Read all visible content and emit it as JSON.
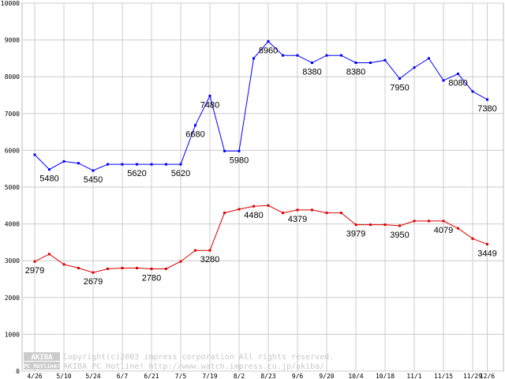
{
  "chart_data": {
    "type": "line",
    "title": "",
    "xlabel": "",
    "ylabel": "",
    "ylim": [
      0,
      10000
    ],
    "y_ticks": [
      0,
      1000,
      2000,
      3000,
      4000,
      5000,
      6000,
      7000,
      8000,
      9000,
      10000
    ],
    "grid": true,
    "legend": "none",
    "x_tick_labels": [
      "4/26",
      "5/10",
      "5/24",
      "6/7",
      "6/21",
      "7/5",
      "7/19",
      "8/2",
      "8/23",
      "9/6",
      "9/20",
      "10/4",
      "10/18",
      "11/1",
      "11/15",
      "11/29",
      "12/6"
    ],
    "x_tick_index": [
      0,
      2,
      4,
      6,
      8,
      10,
      12,
      14,
      16,
      18,
      20,
      22,
      24,
      26,
      28,
      30,
      31
    ],
    "series": [
      {
        "color": "#0000ff",
        "values": [
          5880,
          5480,
          5700,
          5650,
          5450,
          5620,
          5620,
          5620,
          5620,
          5620,
          5620,
          6680,
          7480,
          5980,
          5980,
          8500,
          8960,
          8580,
          8580,
          8380,
          8580,
          8580,
          8380,
          8380,
          8450,
          7950,
          8250,
          8500,
          7900,
          8080,
          7600,
          7380
        ],
        "labels": {
          "1": "5480",
          "4": "5450",
          "7": "5620",
          "10": "5620",
          "11": "6680",
          "12": "7480",
          "14": "5980",
          "16": "8960",
          "19": "8380",
          "22": "8380",
          "25": "7950",
          "29": "8080",
          "31": "7380"
        }
      },
      {
        "color": "#dd0000",
        "values": [
          2979,
          3180,
          2900,
          2800,
          2679,
          2780,
          2800,
          2800,
          2780,
          2780,
          2980,
          3280,
          3280,
          4300,
          4400,
          4480,
          4500,
          4300,
          4379,
          4379,
          4300,
          4300,
          3979,
          3979,
          3979,
          3950,
          4079,
          4079,
          4079,
          3880,
          3600,
          3449
        ],
        "labels": {
          "0": "2979",
          "4": "2679",
          "8": "2780",
          "12": "3280",
          "15": "4480",
          "18": "4379",
          "22": "3979",
          "25": "3950",
          "28": "4079",
          "31": "3449"
        }
      }
    ]
  },
  "logo": {
    "top": "AKIBA",
    "bottom": "PC Hotline!"
  },
  "credits": {
    "line1": "Copyright(c)2003 impress corporation All rights reserved.",
    "line2": "AKIBA PC Hotline!  http://www.watch.impress.co.jp/akiba/"
  }
}
